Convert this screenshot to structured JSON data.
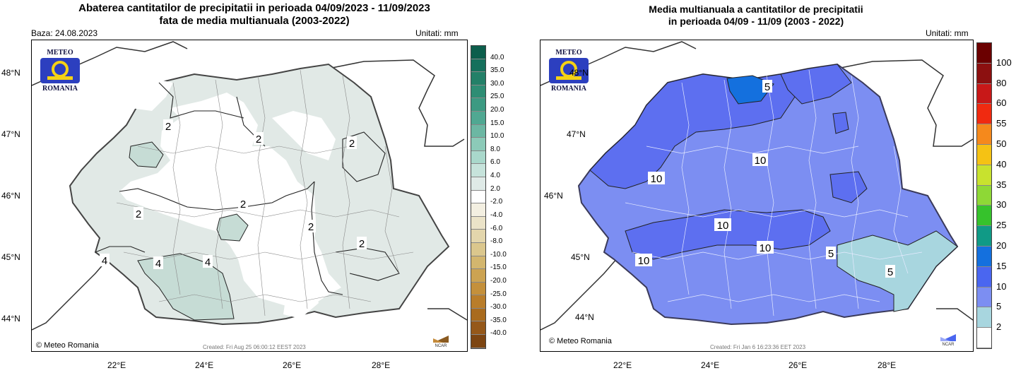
{
  "left": {
    "title_line1": "Abaterea cantitatilor de precipitatii in perioada 04/09/2023 - 11/09/2023",
    "title_line2": "fata de media multianuala (2003-2022)",
    "baza": "Baza: 24.08.2023",
    "unitati": "Unitati: mm",
    "logo_top": "METEO",
    "logo_bottom": "ROMANIA",
    "credit": "© Meteo Romania",
    "created": "Created: Fri Aug 25 06:00:12 EEST 2023",
    "ncar": "NCAR",
    "lat_labels": [
      "48°N",
      "47°N",
      "46°N",
      "45°N",
      "44°N"
    ],
    "lon_labels": [
      "22°E",
      "24°E",
      "26°E",
      "28°E"
    ],
    "contour_labels": [
      "2",
      "2",
      "2",
      "2",
      "2",
      "2",
      "2",
      "4",
      "4",
      "4"
    ],
    "legend_labels": [
      "40.0",
      "35.0",
      "30.0",
      "25.0",
      "20.0",
      "15.0",
      "10.0",
      "8.0",
      "6.0",
      "4.0",
      "2.0",
      "-2.0",
      "-4.0",
      "-6.0",
      "-8.0",
      "-10.0",
      "-15.0",
      "-20.0",
      "-25.0",
      "-30.0",
      "-35.0",
      "-40.0"
    ],
    "legend_colors": [
      "#0c5e4c",
      "#16705c",
      "#238068",
      "#2e8d74",
      "#3c9a82",
      "#50a892",
      "#6cb7a3",
      "#8ccab8",
      "#a9d8cb",
      "#c6e3db",
      "#dfeae7",
      "#ffffff",
      "#f3efe1",
      "#ebe3c8",
      "#e3d6ac",
      "#dbc78d",
      "#d3b66e",
      "#cca352",
      "#c4903b",
      "#b97d2a",
      "#a96b1e",
      "#95581a",
      "#7d4512"
    ]
  },
  "right": {
    "title_line1": "Media multianuala a cantitatilor de precipitatii",
    "title_line2": "in perioada 04/09 - 11/09 (2003 - 2022)",
    "unitati": "Unitati: mm",
    "logo_top": "METEO",
    "logo_bottom": "ROMANIA",
    "credit": "© Meteo Romania",
    "created": "Created: Fri Jan  6 16:23:36 EET 2023",
    "ncar": "NCAR",
    "lat_labels": [
      "48°N",
      "47°N",
      "46°N",
      "45°N",
      "44°N"
    ],
    "lon_labels": [
      "22°E",
      "24°E",
      "26°E",
      "28°E"
    ],
    "contour_labels": [
      "5",
      "10",
      "10",
      "10",
      "10",
      "10",
      "5",
      "5"
    ],
    "legend_labels": [
      "100",
      "80",
      "60",
      "55",
      "50",
      "40",
      "35",
      "30",
      "25",
      "20",
      "15",
      "10",
      "5",
      "2"
    ],
    "legend_colors": [
      "#6b0000",
      "#8c1010",
      "#c81818",
      "#f02a10",
      "#f5891c",
      "#f5c214",
      "#c8e22e",
      "#8ed836",
      "#36c22c",
      "#109a86",
      "#1470de",
      "#4a66f0",
      "#7c8ef2",
      "#a8d6df",
      "#ffffff"
    ]
  }
}
